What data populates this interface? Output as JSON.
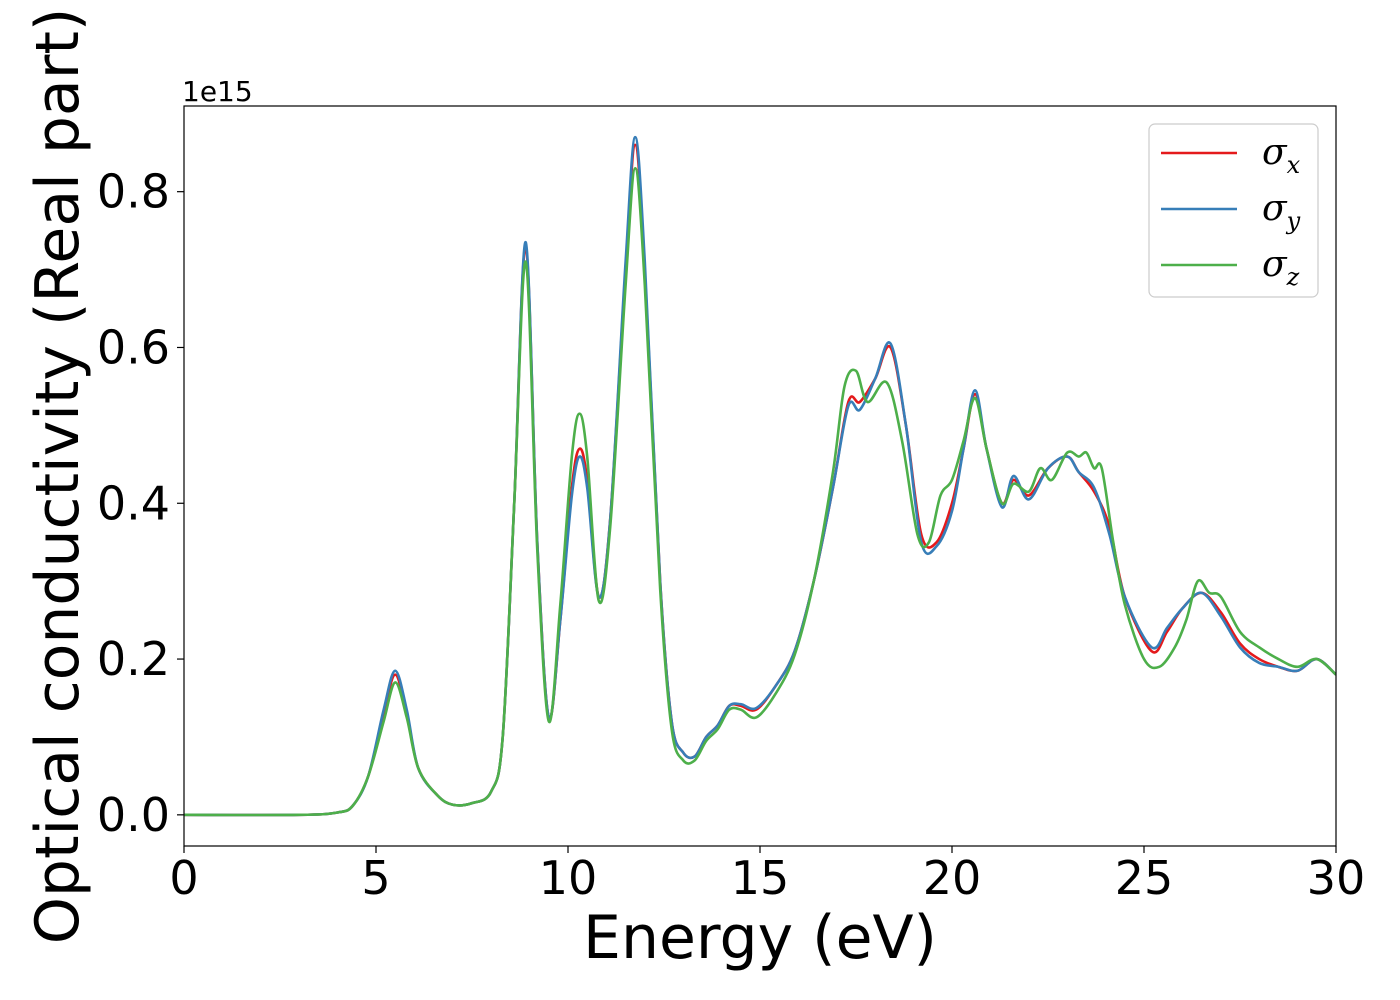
{
  "chart_data": {
    "type": "line",
    "xlabel": "Energy (eV)",
    "ylabel": "Optical conductivity (Real part)",
    "y_offset_text": "1e15",
    "xlim": [
      0,
      30
    ],
    "ylim": [
      -0.04,
      0.91
    ],
    "x_ticks": [
      0,
      5,
      10,
      15,
      20,
      25,
      30
    ],
    "x_tick_labels": [
      "0",
      "5",
      "10",
      "15",
      "20",
      "25",
      "30"
    ],
    "y_ticks": [
      0.0,
      0.2,
      0.4,
      0.6,
      0.8
    ],
    "y_tick_labels": [
      "0.0",
      "0.2",
      "0.4",
      "0.6",
      "0.8"
    ],
    "grid": false,
    "legend_position": "top-right",
    "series": [
      {
        "name": "σx",
        "symbol": "σ",
        "subscript": "x",
        "color": "#e41a1c",
        "points": [
          [
            0,
            0.0
          ],
          [
            3,
            0.0
          ],
          [
            4,
            0.003
          ],
          [
            4.4,
            0.012
          ],
          [
            4.8,
            0.05
          ],
          [
            5.2,
            0.13
          ],
          [
            5.5,
            0.18
          ],
          [
            5.8,
            0.13
          ],
          [
            6.1,
            0.06
          ],
          [
            6.6,
            0.025
          ],
          [
            7.0,
            0.013
          ],
          [
            7.5,
            0.015
          ],
          [
            8.0,
            0.03
          ],
          [
            8.3,
            0.1
          ],
          [
            8.6,
            0.4
          ],
          [
            8.9,
            0.73
          ],
          [
            9.2,
            0.35
          ],
          [
            9.5,
            0.125
          ],
          [
            9.8,
            0.25
          ],
          [
            10.1,
            0.42
          ],
          [
            10.3,
            0.47
          ],
          [
            10.5,
            0.43
          ],
          [
            10.8,
            0.28
          ],
          [
            11.1,
            0.38
          ],
          [
            11.5,
            0.7
          ],
          [
            11.75,
            0.86
          ],
          [
            12.0,
            0.7
          ],
          [
            12.4,
            0.3
          ],
          [
            12.7,
            0.12
          ],
          [
            13.0,
            0.08
          ],
          [
            13.3,
            0.075
          ],
          [
            13.6,
            0.1
          ],
          [
            13.9,
            0.115
          ],
          [
            14.2,
            0.14
          ],
          [
            14.5,
            0.14
          ],
          [
            14.9,
            0.135
          ],
          [
            15.4,
            0.165
          ],
          [
            15.9,
            0.21
          ],
          [
            16.4,
            0.3
          ],
          [
            16.9,
            0.42
          ],
          [
            17.3,
            0.53
          ],
          [
            17.6,
            0.53
          ],
          [
            18.0,
            0.56
          ],
          [
            18.4,
            0.6
          ],
          [
            18.8,
            0.5
          ],
          [
            19.2,
            0.36
          ],
          [
            19.6,
            0.35
          ],
          [
            20.0,
            0.4
          ],
          [
            20.3,
            0.47
          ],
          [
            20.6,
            0.54
          ],
          [
            20.9,
            0.47
          ],
          [
            21.3,
            0.4
          ],
          [
            21.6,
            0.43
          ],
          [
            22.0,
            0.41
          ],
          [
            22.5,
            0.445
          ],
          [
            23.0,
            0.46
          ],
          [
            23.3,
            0.44
          ],
          [
            23.7,
            0.415
          ],
          [
            24.1,
            0.37
          ],
          [
            24.5,
            0.28
          ],
          [
            25.2,
            0.21
          ],
          [
            25.6,
            0.235
          ],
          [
            26.0,
            0.265
          ],
          [
            26.5,
            0.285
          ],
          [
            27.0,
            0.26
          ],
          [
            27.5,
            0.22
          ],
          [
            28.0,
            0.2
          ],
          [
            28.5,
            0.19
          ],
          [
            29.0,
            0.185
          ],
          [
            29.5,
            0.2
          ],
          [
            30.0,
            0.18
          ]
        ]
      },
      {
        "name": "σy",
        "symbol": "σ",
        "subscript": "y",
        "color": "#377eb8",
        "points": [
          [
            0,
            0.0
          ],
          [
            3,
            0.0
          ],
          [
            4,
            0.003
          ],
          [
            4.4,
            0.012
          ],
          [
            4.8,
            0.05
          ],
          [
            5.2,
            0.135
          ],
          [
            5.5,
            0.185
          ],
          [
            5.8,
            0.135
          ],
          [
            6.1,
            0.06
          ],
          [
            6.6,
            0.025
          ],
          [
            7.0,
            0.013
          ],
          [
            7.5,
            0.015
          ],
          [
            8.0,
            0.03
          ],
          [
            8.3,
            0.1
          ],
          [
            8.6,
            0.4
          ],
          [
            8.9,
            0.735
          ],
          [
            9.2,
            0.35
          ],
          [
            9.5,
            0.125
          ],
          [
            9.8,
            0.25
          ],
          [
            10.1,
            0.41
          ],
          [
            10.3,
            0.46
          ],
          [
            10.5,
            0.42
          ],
          [
            10.8,
            0.28
          ],
          [
            11.1,
            0.38
          ],
          [
            11.5,
            0.71
          ],
          [
            11.75,
            0.87
          ],
          [
            12.0,
            0.71
          ],
          [
            12.4,
            0.3
          ],
          [
            12.7,
            0.12
          ],
          [
            13.0,
            0.08
          ],
          [
            13.3,
            0.075
          ],
          [
            13.6,
            0.1
          ],
          [
            13.9,
            0.115
          ],
          [
            14.2,
            0.14
          ],
          [
            14.5,
            0.142
          ],
          [
            14.9,
            0.137
          ],
          [
            15.4,
            0.165
          ],
          [
            15.9,
            0.21
          ],
          [
            16.4,
            0.3
          ],
          [
            16.9,
            0.42
          ],
          [
            17.3,
            0.525
          ],
          [
            17.6,
            0.52
          ],
          [
            18.0,
            0.56
          ],
          [
            18.4,
            0.605
          ],
          [
            18.8,
            0.5
          ],
          [
            19.2,
            0.35
          ],
          [
            19.6,
            0.345
          ],
          [
            20.0,
            0.39
          ],
          [
            20.3,
            0.47
          ],
          [
            20.6,
            0.545
          ],
          [
            20.9,
            0.47
          ],
          [
            21.3,
            0.395
          ],
          [
            21.6,
            0.435
          ],
          [
            22.0,
            0.405
          ],
          [
            22.5,
            0.445
          ],
          [
            23.0,
            0.46
          ],
          [
            23.3,
            0.44
          ],
          [
            23.7,
            0.42
          ],
          [
            24.1,
            0.36
          ],
          [
            24.5,
            0.28
          ],
          [
            25.2,
            0.215
          ],
          [
            25.6,
            0.24
          ],
          [
            26.0,
            0.265
          ],
          [
            26.5,
            0.285
          ],
          [
            27.0,
            0.255
          ],
          [
            27.5,
            0.215
          ],
          [
            28.0,
            0.195
          ],
          [
            28.5,
            0.19
          ],
          [
            29.0,
            0.185
          ],
          [
            29.5,
            0.2
          ],
          [
            30.0,
            0.18
          ]
        ]
      },
      {
        "name": "σz",
        "symbol": "σ",
        "subscript": "z",
        "color": "#4daf4a",
        "points": [
          [
            0,
            0.0
          ],
          [
            3,
            0.0
          ],
          [
            4,
            0.003
          ],
          [
            4.4,
            0.012
          ],
          [
            4.8,
            0.05
          ],
          [
            5.2,
            0.12
          ],
          [
            5.5,
            0.17
          ],
          [
            5.8,
            0.125
          ],
          [
            6.1,
            0.06
          ],
          [
            6.6,
            0.025
          ],
          [
            7.0,
            0.013
          ],
          [
            7.5,
            0.015
          ],
          [
            8.0,
            0.03
          ],
          [
            8.3,
            0.1
          ],
          [
            8.6,
            0.4
          ],
          [
            8.9,
            0.71
          ],
          [
            9.2,
            0.34
          ],
          [
            9.5,
            0.12
          ],
          [
            9.8,
            0.27
          ],
          [
            10.1,
            0.46
          ],
          [
            10.3,
            0.515
          ],
          [
            10.5,
            0.46
          ],
          [
            10.8,
            0.275
          ],
          [
            11.1,
            0.37
          ],
          [
            11.5,
            0.68
          ],
          [
            11.75,
            0.83
          ],
          [
            12.0,
            0.68
          ],
          [
            12.4,
            0.29
          ],
          [
            12.7,
            0.11
          ],
          [
            13.0,
            0.07
          ],
          [
            13.3,
            0.07
          ],
          [
            13.6,
            0.095
          ],
          [
            13.9,
            0.11
          ],
          [
            14.2,
            0.135
          ],
          [
            14.5,
            0.135
          ],
          [
            14.9,
            0.125
          ],
          [
            15.4,
            0.155
          ],
          [
            15.9,
            0.205
          ],
          [
            16.4,
            0.3
          ],
          [
            16.9,
            0.44
          ],
          [
            17.2,
            0.55
          ],
          [
            17.5,
            0.57
          ],
          [
            17.8,
            0.53
          ],
          [
            18.3,
            0.555
          ],
          [
            18.7,
            0.48
          ],
          [
            19.1,
            0.36
          ],
          [
            19.4,
            0.35
          ],
          [
            19.7,
            0.41
          ],
          [
            20.0,
            0.43
          ],
          [
            20.3,
            0.48
          ],
          [
            20.6,
            0.535
          ],
          [
            20.9,
            0.47
          ],
          [
            21.3,
            0.4
          ],
          [
            21.6,
            0.425
          ],
          [
            22.0,
            0.415
          ],
          [
            22.3,
            0.445
          ],
          [
            22.6,
            0.43
          ],
          [
            23.0,
            0.465
          ],
          [
            23.3,
            0.46
          ],
          [
            23.5,
            0.465
          ],
          [
            23.7,
            0.445
          ],
          [
            23.9,
            0.445
          ],
          [
            24.2,
            0.35
          ],
          [
            24.5,
            0.27
          ],
          [
            25.0,
            0.2
          ],
          [
            25.4,
            0.19
          ],
          [
            25.8,
            0.215
          ],
          [
            26.1,
            0.25
          ],
          [
            26.4,
            0.3
          ],
          [
            26.7,
            0.285
          ],
          [
            27.0,
            0.28
          ],
          [
            27.5,
            0.235
          ],
          [
            28.0,
            0.215
          ],
          [
            28.5,
            0.2
          ],
          [
            29.0,
            0.19
          ],
          [
            29.5,
            0.2
          ],
          [
            30.0,
            0.18
          ]
        ]
      }
    ]
  }
}
